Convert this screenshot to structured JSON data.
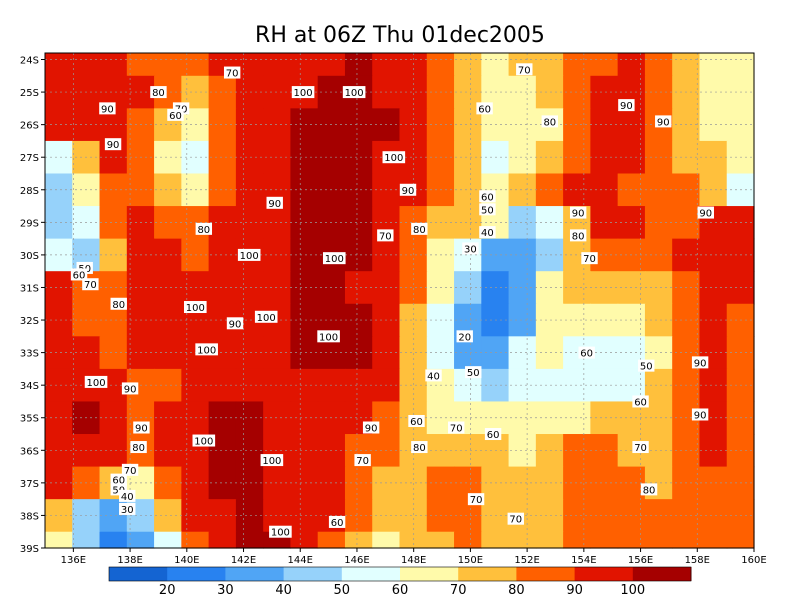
{
  "chart_data": {
    "type": "heatmap",
    "title": "RH at 06Z Thu 01dec2005",
    "xlabel": "",
    "ylabel": "",
    "x_ticks": [
      "136E",
      "138E",
      "140E",
      "142E",
      "144E",
      "146E",
      "148E",
      "150E",
      "152E",
      "154E",
      "156E",
      "158E",
      "160E"
    ],
    "x_values": [
      136,
      138,
      140,
      142,
      144,
      146,
      148,
      150,
      152,
      154,
      156,
      158,
      160
    ],
    "y_ticks": [
      "24S",
      "25S",
      "26S",
      "27S",
      "28S",
      "29S",
      "30S",
      "31S",
      "32S",
      "33S",
      "34S",
      "35S",
      "36S",
      "37S",
      "38S",
      "39S"
    ],
    "y_values": [
      -24,
      -25,
      -26,
      -27,
      -28,
      -29,
      -30,
      -31,
      -32,
      -33,
      -34,
      -35,
      -36,
      -37,
      -38,
      -39
    ],
    "xlim": [
      135,
      160
    ],
    "ylim": [
      -39,
      -23.8
    ],
    "grid": true,
    "colorbar": {
      "labels": [
        "20",
        "30",
        "40",
        "50",
        "60",
        "70",
        "80",
        "90",
        "100"
      ],
      "levels": [
        20,
        30,
        40,
        50,
        60,
        70,
        80,
        90,
        100
      ],
      "colors": [
        "#1464d2",
        "#2882f0",
        "#50a5f5",
        "#96d2fa",
        "#e1ffff",
        "#fffaaa",
        "#ffc03c",
        "#ff6000",
        "#e11400",
        "#a50000"
      ]
    },
    "cells": [
      [
        -24,
        [
          96,
          95,
          90,
          88,
          84,
          80,
          92,
          98,
          95,
          95,
          97,
          100,
          96,
          94,
          86,
          75,
          68,
          70,
          78,
          85,
          88,
          90,
          86,
          75,
          65,
          60
        ]
      ],
      [
        -25,
        [
          95,
          93,
          90,
          90,
          80,
          72,
          85,
          96,
          97,
          98,
          102,
          103,
          98,
          95,
          85,
          72,
          64,
          62,
          72,
          84,
          90,
          92,
          87,
          75,
          64,
          62
        ]
      ],
      [
        -26,
        [
          92,
          90,
          92,
          85,
          70,
          60,
          80,
          97,
          98,
          100,
          104,
          104,
          100,
          96,
          85,
          70,
          60,
          60,
          68,
          82,
          90,
          92,
          85,
          72,
          64,
          64
        ]
      ],
      [
        -27,
        [
          55,
          72,
          92,
          84,
          60,
          50,
          80,
          96,
          98,
          100,
          104,
          102,
          98,
          94,
          82,
          70,
          58,
          62,
          78,
          88,
          92,
          90,
          85,
          74,
          70,
          60
        ]
      ],
      [
        -28,
        [
          45,
          60,
          88,
          88,
          70,
          62,
          86,
          95,
          97,
          100,
          103,
          100,
          96,
          92,
          80,
          72,
          64,
          70,
          82,
          92,
          95,
          88,
          86,
          84,
          76,
          58
        ]
      ],
      [
        -29,
        [
          40,
          55,
          80,
          92,
          85,
          80,
          90,
          96,
          97,
          100,
          102,
          100,
          92,
          84,
          74,
          70,
          62,
          48,
          58,
          78,
          90,
          92,
          84,
          88,
          92,
          90
        ]
      ],
      [
        -30,
        [
          55,
          45,
          72,
          92,
          90,
          88,
          92,
          98,
          98,
          100,
          102,
          100,
          94,
          82,
          68,
          50,
          35,
          30,
          45,
          70,
          86,
          82,
          80,
          90,
          95,
          92
        ]
      ],
      [
        -31,
        [
          95,
          80,
          80,
          90,
          95,
          92,
          94,
          96,
          98,
          100,
          102,
          98,
          92,
          80,
          64,
          42,
          24,
          32,
          60,
          74,
          76,
          70,
          76,
          88,
          96,
          90
        ]
      ],
      [
        -32,
        [
          96,
          88,
          84,
          92,
          94,
          95,
          94,
          96,
          97,
          100,
          104,
          100,
          92,
          78,
          58,
          30,
          20,
          38,
          62,
          66,
          62,
          68,
          74,
          86,
          94,
          88
        ]
      ],
      [
        -33,
        [
          92,
          90,
          88,
          90,
          92,
          94,
          96,
          96,
          97,
          100,
          102,
          100,
          92,
          78,
          58,
          36,
          30,
          50,
          62,
          56,
          56,
          54,
          68,
          84,
          92,
          86
        ]
      ],
      [
        -34,
        [
          95,
          94,
          92,
          88,
          88,
          94,
          98,
          98,
          97,
          98,
          98,
          96,
          90,
          78,
          60,
          50,
          48,
          56,
          58,
          52,
          55,
          58,
          70,
          82,
          90,
          84
        ]
      ],
      [
        -35,
        [
          96,
          100,
          92,
          88,
          90,
          96,
          100,
          100,
          98,
          96,
          94,
          92,
          86,
          72,
          60,
          64,
          66,
          62,
          64,
          66,
          70,
          72,
          74,
          80,
          90,
          86
        ]
      ],
      [
        -36,
        [
          92,
          98,
          94,
          88,
          92,
          98,
          102,
          100,
          96,
          94,
          92,
          86,
          82,
          76,
          74,
          76,
          72,
          66,
          72,
          80,
          82,
          78,
          74,
          80,
          90,
          88
        ]
      ],
      [
        -37,
        [
          90,
          80,
          70,
          62,
          84,
          94,
          100,
          102,
          98,
          96,
          94,
          86,
          74,
          76,
          84,
          88,
          78,
          70,
          78,
          86,
          84,
          80,
          76,
          82,
          88,
          88
        ]
      ],
      [
        -38,
        [
          72,
          48,
          38,
          40,
          70,
          90,
          98,
          102,
          98,
          96,
          90,
          80,
          70,
          78,
          80,
          86,
          78,
          72,
          78,
          84,
          86,
          84,
          80,
          82,
          86,
          88
        ]
      ],
      [
        -39,
        [
          60,
          40,
          28,
          34,
          58,
          88,
          98,
          104,
          100,
          96,
          88,
          78,
          68,
          74,
          78,
          82,
          76,
          72,
          76,
          82,
          84,
          84,
          82,
          84,
          86,
          88
        ]
      ]
    ],
    "contour_labels": [
      {
        "lon": 135.0,
        "lat": -23.8,
        "text": ""
      },
      {
        "lon": 141.6,
        "lat": -24.4,
        "text": "70"
      },
      {
        "lon": 139.0,
        "lat": -25.0,
        "text": "80"
      },
      {
        "lon": 137.2,
        "lat": -25.5,
        "text": "90"
      },
      {
        "lon": 139.8,
        "lat": -25.5,
        "text": "70"
      },
      {
        "lon": 139.6,
        "lat": -25.7,
        "text": "60"
      },
      {
        "lon": 137.4,
        "lat": -26.6,
        "text": "90"
      },
      {
        "lon": 144.1,
        "lat": -25.0,
        "text": "100"
      },
      {
        "lon": 145.9,
        "lat": -25.0,
        "text": "100"
      },
      {
        "lon": 147.3,
        "lat": -27.0,
        "text": "100"
      },
      {
        "lon": 147.8,
        "lat": -28.0,
        "text": "90"
      },
      {
        "lon": 143.1,
        "lat": -28.4,
        "text": "90"
      },
      {
        "lon": 140.6,
        "lat": -29.2,
        "text": "80"
      },
      {
        "lon": 147.0,
        "lat": -29.4,
        "text": "70"
      },
      {
        "lon": 148.2,
        "lat": -29.2,
        "text": "80"
      },
      {
        "lon": 142.2,
        "lat": -30.0,
        "text": "100"
      },
      {
        "lon": 145.2,
        "lat": -30.1,
        "text": "100"
      },
      {
        "lon": 151.9,
        "lat": -24.3,
        "text": "70"
      },
      {
        "lon": 150.5,
        "lat": -25.5,
        "text": "60"
      },
      {
        "lon": 152.8,
        "lat": -25.9,
        "text": "80"
      },
      {
        "lon": 155.5,
        "lat": -25.4,
        "text": "90"
      },
      {
        "lon": 156.8,
        "lat": -25.9,
        "text": "90"
      },
      {
        "lon": 150.6,
        "lat": -28.2,
        "text": "60"
      },
      {
        "lon": 150.6,
        "lat": -28.6,
        "text": "50"
      },
      {
        "lon": 150.6,
        "lat": -29.3,
        "text": "40"
      },
      {
        "lon": 150.0,
        "lat": -29.8,
        "text": "30"
      },
      {
        "lon": 153.8,
        "lat": -28.7,
        "text": "90"
      },
      {
        "lon": 153.8,
        "lat": -29.4,
        "text": "80"
      },
      {
        "lon": 154.2,
        "lat": -30.1,
        "text": "70"
      },
      {
        "lon": 158.3,
        "lat": -28.7,
        "text": "90"
      },
      {
        "lon": 136.4,
        "lat": -30.4,
        "text": "50"
      },
      {
        "lon": 136.2,
        "lat": -30.6,
        "text": "60"
      },
      {
        "lon": 136.6,
        "lat": -30.9,
        "text": "70"
      },
      {
        "lon": 137.6,
        "lat": -31.5,
        "text": "80"
      },
      {
        "lon": 140.3,
        "lat": -31.6,
        "text": "100"
      },
      {
        "lon": 141.7,
        "lat": -32.1,
        "text": "90"
      },
      {
        "lon": 142.8,
        "lat": -31.9,
        "text": "100"
      },
      {
        "lon": 145.0,
        "lat": -32.5,
        "text": "100"
      },
      {
        "lon": 140.7,
        "lat": -32.9,
        "text": "100"
      },
      {
        "lon": 149.8,
        "lat": -32.5,
        "text": "20"
      },
      {
        "lon": 154.1,
        "lat": -33.0,
        "text": "60"
      },
      {
        "lon": 156.2,
        "lat": -33.4,
        "text": "50"
      },
      {
        "lon": 158.1,
        "lat": -33.3,
        "text": "90"
      },
      {
        "lon": 136.8,
        "lat": -33.9,
        "text": "100"
      },
      {
        "lon": 138.0,
        "lat": -34.1,
        "text": "90"
      },
      {
        "lon": 148.7,
        "lat": -33.7,
        "text": "40"
      },
      {
        "lon": 150.1,
        "lat": -33.6,
        "text": "50"
      },
      {
        "lon": 156.0,
        "lat": -34.5,
        "text": "60"
      },
      {
        "lon": 158.1,
        "lat": -34.9,
        "text": "90"
      },
      {
        "lon": 138.4,
        "lat": -35.3,
        "text": "90"
      },
      {
        "lon": 138.3,
        "lat": -35.9,
        "text": "80"
      },
      {
        "lon": 140.6,
        "lat": -35.7,
        "text": "100"
      },
      {
        "lon": 146.5,
        "lat": -35.3,
        "text": "90"
      },
      {
        "lon": 148.1,
        "lat": -35.1,
        "text": "60"
      },
      {
        "lon": 149.5,
        "lat": -35.3,
        "text": "70"
      },
      {
        "lon": 150.8,
        "lat": -35.5,
        "text": "60"
      },
      {
        "lon": 148.2,
        "lat": -35.9,
        "text": "80"
      },
      {
        "lon": 156.0,
        "lat": -35.9,
        "text": "70"
      },
      {
        "lon": 143.0,
        "lat": -36.3,
        "text": "100"
      },
      {
        "lon": 146.2,
        "lat": -36.3,
        "text": "70"
      },
      {
        "lon": 138.0,
        "lat": -36.6,
        "text": "70"
      },
      {
        "lon": 137.6,
        "lat": -36.9,
        "text": "60"
      },
      {
        "lon": 137.6,
        "lat": -37.2,
        "text": "50"
      },
      {
        "lon": 137.9,
        "lat": -37.4,
        "text": "40"
      },
      {
        "lon": 137.9,
        "lat": -37.8,
        "text": "30"
      },
      {
        "lon": 150.2,
        "lat": -37.5,
        "text": "70"
      },
      {
        "lon": 156.3,
        "lat": -37.2,
        "text": "80"
      },
      {
        "lon": 151.6,
        "lat": -38.1,
        "text": "70"
      },
      {
        "lon": 145.3,
        "lat": -38.2,
        "text": "60"
      },
      {
        "lon": 143.3,
        "lat": -38.5,
        "text": "100"
      }
    ]
  }
}
